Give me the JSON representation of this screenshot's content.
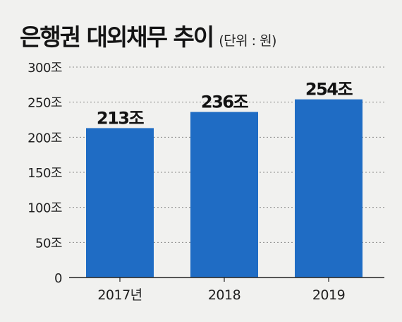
{
  "colors": {
    "bar": "#1f6cc4",
    "grid": "#8a8a8a",
    "axis": "#222222",
    "background": "#f1f1ef"
  },
  "chart_data": {
    "type": "bar",
    "title": "은행권 대외채무 추이",
    "unit_note": "(단위 : 원)",
    "categories": [
      "2017년",
      "2018",
      "2019"
    ],
    "values": [
      213,
      236,
      254
    ],
    "value_labels": [
      "213조",
      "236조",
      "254조"
    ],
    "ylim": [
      0,
      300
    ],
    "yticks": [
      0,
      50,
      100,
      150,
      200,
      250,
      300
    ],
    "ytick_labels": [
      "0",
      "50조",
      "100조",
      "150조",
      "200조",
      "250조",
      "300조"
    ],
    "grid": true,
    "xlabel": "",
    "ylabel": ""
  }
}
